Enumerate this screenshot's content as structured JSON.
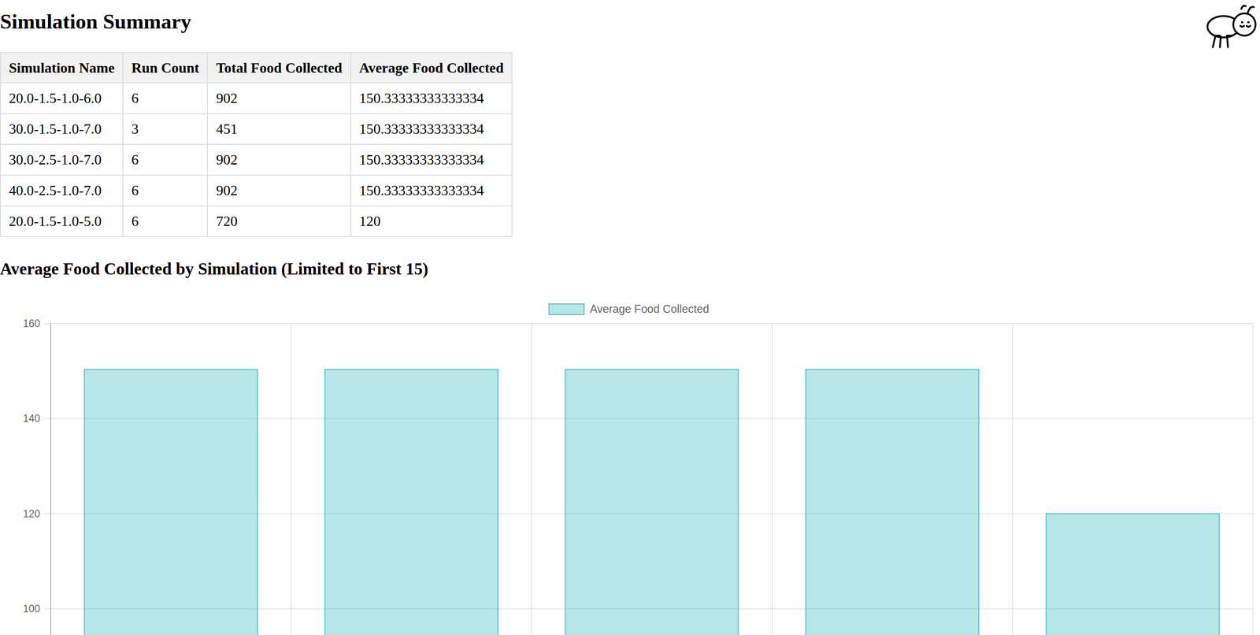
{
  "header": {
    "title": "Simulation Summary"
  },
  "table": {
    "columns": [
      "Simulation Name",
      "Run Count",
      "Total Food Collected",
      "Average Food Collected"
    ],
    "rows": [
      [
        "20.0-1.5-1.0-6.0",
        6,
        902,
        150.33333333333334
      ],
      [
        "30.0-1.5-1.0-7.0",
        3,
        451,
        150.33333333333334
      ],
      [
        "30.0-2.5-1.0-7.0",
        6,
        902,
        150.33333333333334
      ],
      [
        "40.0-2.5-1.0-7.0",
        6,
        902,
        150.33333333333334
      ],
      [
        "20.0-1.5-1.0-5.0",
        6,
        720,
        120
      ]
    ]
  },
  "chart_data": {
    "type": "bar",
    "title": "Average Food Collected by Simulation (Limited to First 15)",
    "categories": [
      null,
      null,
      null,
      null,
      null
    ],
    "series": [
      {
        "name": "Average Food Collected",
        "color": "#4bc0c0",
        "values": [
          150.33333333333334,
          150.33333333333334,
          150.33333333333334,
          150.33333333333334,
          120
        ]
      }
    ],
    "ylim": [
      94.4,
      160
    ],
    "yticks": [
      100,
      120,
      140,
      160
    ],
    "grid": true,
    "legend": "top"
  }
}
